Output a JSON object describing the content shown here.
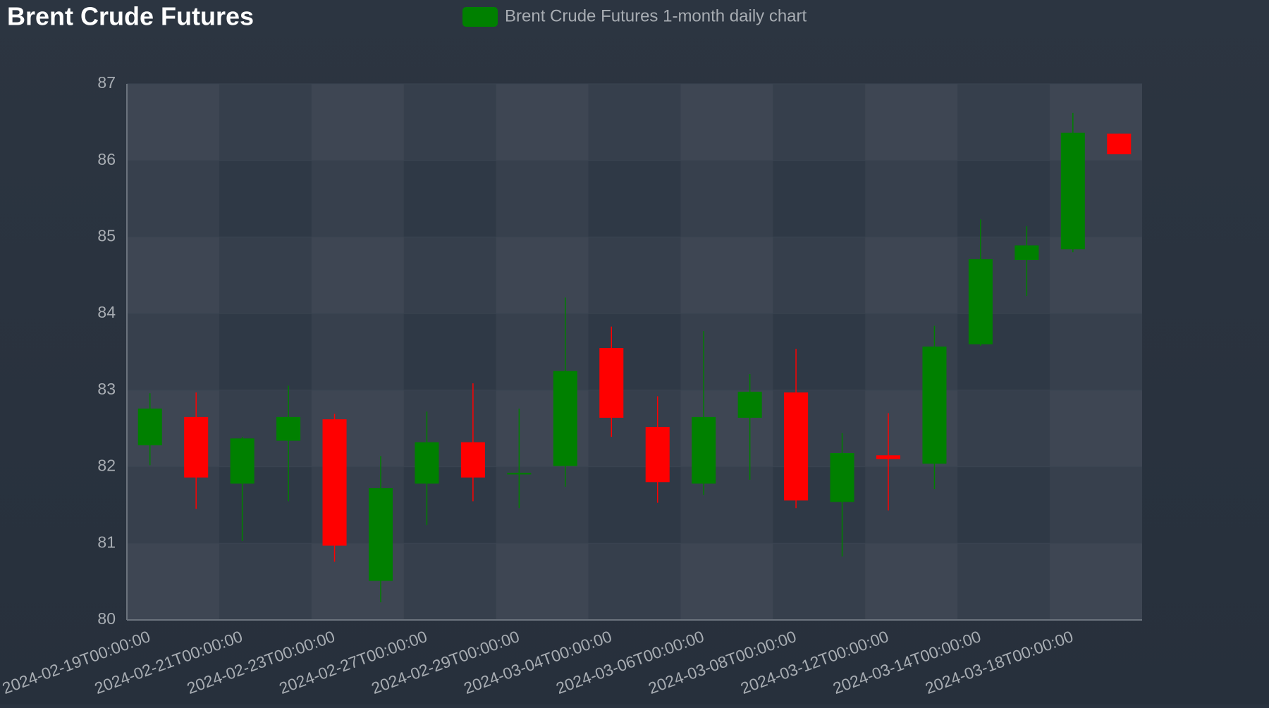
{
  "chart_data": {
    "type": "candlestick",
    "title": "Brent Crude Futures",
    "categories": [
      "2024-02-19T00:00:00",
      null,
      "2024-02-21T00:00:00",
      null,
      "2024-02-23T00:00:00",
      null,
      "2024-02-27T00:00:00",
      null,
      "2024-02-29T00:00:00",
      null,
      "2024-03-04T00:00:00",
      null,
      "2024-03-06T00:00:00",
      null,
      "2024-03-08T00:00:00",
      null,
      "2024-03-12T00:00:00",
      null,
      "2024-03-14T00:00:00",
      null,
      "2024-03-18T00:00:00",
      null
    ],
    "series": [
      {
        "name": "Brent Crude Futures 1-month daily chart",
        "up_color": "#008000",
        "down_color": "#ff0000",
        "open": [
          82.28,
          82.65,
          81.78,
          82.34,
          82.62,
          80.51,
          81.78,
          82.32,
          81.9,
          82.01,
          83.55,
          82.52,
          81.78,
          82.64,
          82.97,
          81.54,
          82.15,
          82.04,
          83.6,
          84.7,
          84.84,
          86.35
        ],
        "high": [
          82.96,
          82.97,
          82.39,
          83.06,
          82.69,
          82.14,
          82.72,
          83.09,
          82.76,
          84.21,
          83.83,
          82.92,
          83.77,
          83.21,
          83.54,
          82.44,
          82.7,
          83.84,
          85.23,
          85.14,
          86.62,
          86.35
        ],
        "low": [
          82.02,
          81.45,
          81.03,
          81.55,
          80.76,
          80.23,
          81.24,
          81.55,
          81.46,
          81.74,
          82.39,
          81.53,
          81.63,
          81.83,
          81.46,
          80.83,
          81.43,
          81.71,
          83.58,
          84.23,
          84.8,
          86.08
        ],
        "close": [
          82.76,
          81.86,
          82.37,
          82.65,
          80.97,
          81.72,
          82.32,
          81.86,
          81.92,
          83.25,
          82.64,
          81.8,
          82.65,
          82.98,
          81.56,
          82.18,
          82.1,
          83.57,
          84.71,
          84.89,
          86.36,
          86.08
        ]
      }
    ],
    "ylim": [
      80,
      87
    ],
    "yticks": [
      80,
      81,
      82,
      83,
      84,
      85,
      86,
      87
    ]
  }
}
